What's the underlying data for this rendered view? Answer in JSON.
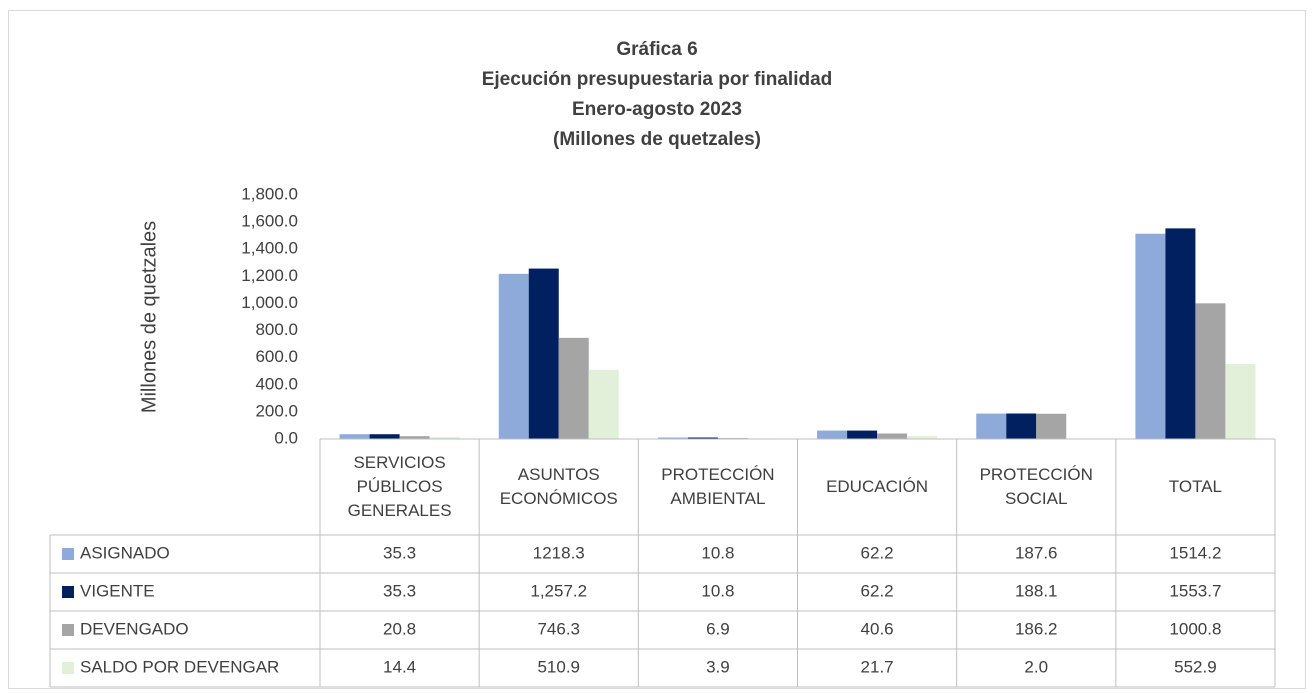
{
  "chart_data": {
    "type": "bar",
    "title": "Gráfica 6",
    "subtitle": [
      "Ejecución presupuestaria por finalidad",
      "Enero-agosto 2023",
      "(Millones de quetzales)"
    ],
    "y_label": "Millones de quetzales",
    "categories": [
      "SERVICIOS PÚBLICOS GENERALES",
      "ASUNTOS ECONÓMICOS",
      "PROTECCIÓN AMBIENTAL",
      "EDUCACIÓN",
      "PROTECCIÓN SOCIAL",
      "TOTAL"
    ],
    "series": [
      {
        "name": "ASIGNADO",
        "color": "#8eaadb",
        "values": [
          35.3,
          1218.3,
          10.8,
          62.2,
          187.6,
          1514.2
        ],
        "value_labels": [
          "35.3",
          "1218.3",
          "10.8",
          "62.2",
          "187.6",
          "1514.2"
        ]
      },
      {
        "name": "VIGENTE",
        "color": "#002060",
        "values": [
          35.3,
          1257.2,
          10.8,
          62.2,
          188.1,
          1553.7
        ],
        "value_labels": [
          "35.3",
          "1,257.2",
          "10.8",
          "62.2",
          "188.1",
          "1553.7"
        ]
      },
      {
        "name": "DEVENGADO",
        "color": "#a5a5a5",
        "values": [
          20.8,
          746.3,
          6.9,
          40.6,
          186.2,
          1000.8
        ],
        "value_labels": [
          "20.8",
          "746.3",
          "6.9",
          "40.6",
          "186.2",
          "1000.8"
        ]
      },
      {
        "name": "SALDO POR DEVENGAR",
        "color": "#e2efd9",
        "values": [
          14.4,
          510.9,
          3.9,
          21.7,
          2.0,
          552.9
        ],
        "value_labels": [
          "14.4",
          "510.9",
          "3.9",
          "21.7",
          "2.0",
          "552.9"
        ]
      }
    ],
    "ylim": [
      0,
      1800
    ],
    "yticks": [
      {
        "value": 0,
        "label": "0.0"
      },
      {
        "value": 200,
        "label": "200.0"
      },
      {
        "value": 400,
        "label": "400.0"
      },
      {
        "value": 600,
        "label": "600.0"
      },
      {
        "value": 800,
        "label": "800.0"
      },
      {
        "value": 1000,
        "label": "1,000.0"
      },
      {
        "value": 1200,
        "label": "1,200.0"
      },
      {
        "value": 1400,
        "label": "1,400.0"
      },
      {
        "value": 1600,
        "label": "1,600.0"
      },
      {
        "value": 1800,
        "label": "1,800.0"
      }
    ],
    "grid": false
  }
}
